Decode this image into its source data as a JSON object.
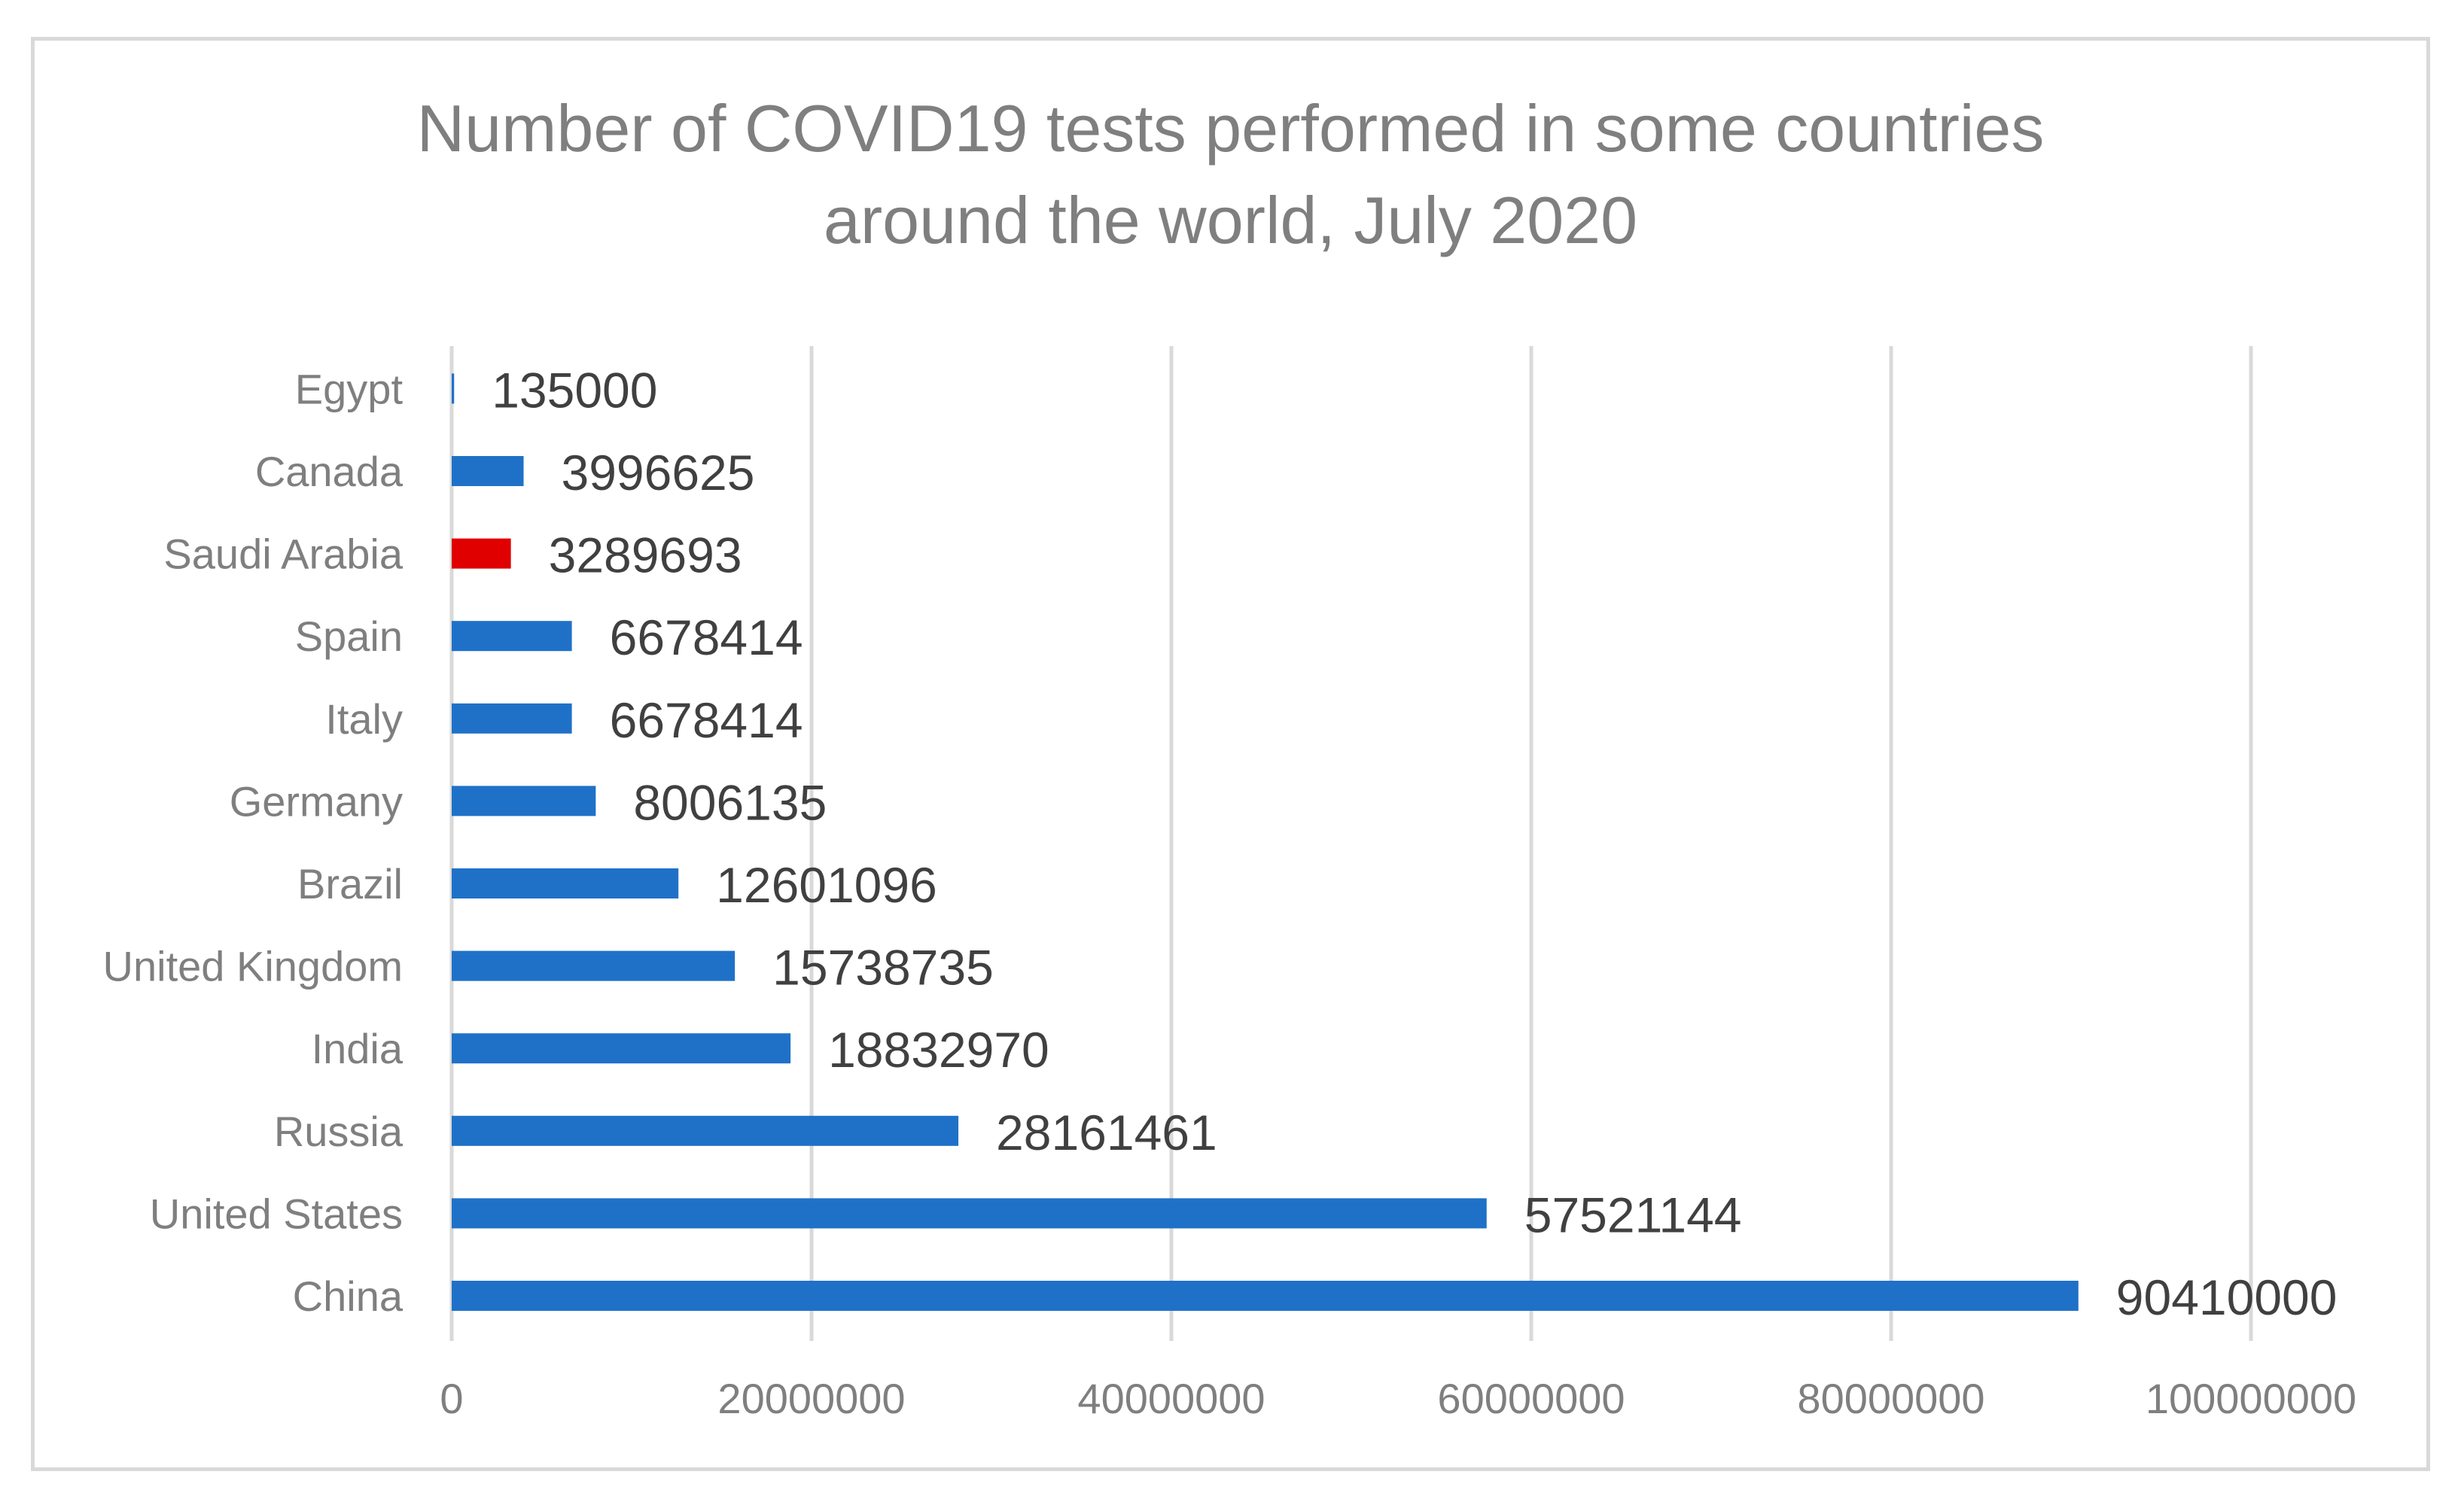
{
  "chart_data": {
    "type": "bar",
    "orientation": "horizontal",
    "title": "Number of COVID19 tests performed in some countries around the world, July 2020",
    "title_lines": [
      "Number of COVID19 tests performed in some countries",
      "around the world, July 2020"
    ],
    "categories": [
      "China",
      "United States",
      "Russia",
      "India",
      "United Kingdom",
      "Brazil",
      "Germany",
      "Italy",
      "Spain",
      "Saudi Arabia",
      "Canada",
      "Egypt"
    ],
    "values": [
      90410000,
      57521144,
      28161461,
      18832970,
      15738735,
      12601096,
      8006135,
      6678414,
      6678414,
      3289693,
      3996625,
      135000
    ],
    "data_labels": [
      "90410000",
      "57521144",
      "28161461",
      "18832970",
      "15738735",
      "12601096",
      "8006135",
      "6678414",
      "6678414",
      "3289693",
      "3996625",
      "135000"
    ],
    "bar_colors": [
      "#1f71c8",
      "#1f71c8",
      "#1f71c8",
      "#1f71c8",
      "#1f71c8",
      "#1f71c8",
      "#1f71c8",
      "#1f71c8",
      "#1f71c8",
      "#e00000",
      "#1f71c8",
      "#1f71c8"
    ],
    "xlim": [
      0,
      100000000
    ],
    "x_ticks": [
      0,
      20000000,
      40000000,
      60000000,
      80000000,
      100000000
    ],
    "x_tick_labels": [
      "0",
      "20000000",
      "40000000",
      "60000000",
      "80000000",
      "100000000"
    ],
    "xlabel": "",
    "ylabel": "",
    "grid": "vertical",
    "legend": "none",
    "colors": {
      "bar": "#1f71c8",
      "highlight": "#e00000",
      "grid": "#d9d9d9",
      "text": "#7f7f7f",
      "data_label": "#404040"
    }
  }
}
